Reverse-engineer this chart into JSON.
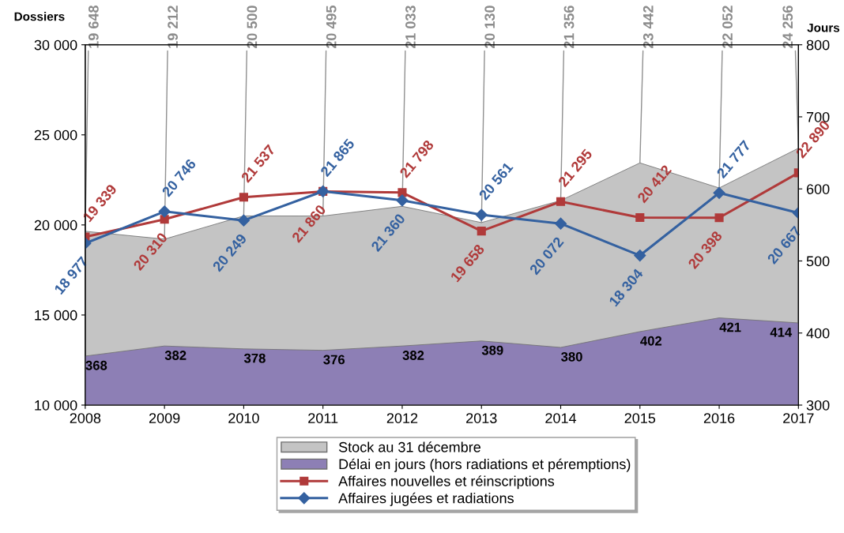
{
  "chart_data": {
    "type": "line",
    "categories": [
      "2008",
      "2009",
      "2010",
      "2011",
      "2012",
      "2013",
      "2014",
      "2015",
      "2016",
      "2017"
    ],
    "ylabel": "Dossiers",
    "y2label": "Jours",
    "ylim": [
      10000,
      30000
    ],
    "yticks": [
      {
        "value": 10000,
        "label": "10 000"
      },
      {
        "value": 15000,
        "label": "15 000"
      },
      {
        "value": 20000,
        "label": "20 000"
      },
      {
        "value": 25000,
        "label": "25 000"
      },
      {
        "value": 30000,
        "label": "30 000"
      }
    ],
    "y2lim": [
      300,
      800
    ],
    "y2ticks": [
      300,
      400,
      500,
      600,
      700,
      800
    ],
    "series": [
      {
        "name": "Stock au 31 décembre",
        "type": "area",
        "color": "#c4c4c4",
        "values": [
          19648,
          19212,
          20500,
          20495,
          21033,
          20130,
          21356,
          23442,
          22052,
          24256
        ]
      },
      {
        "name": "Délai en jours (hors radiations et péremptions)",
        "type": "area",
        "axis": "y2",
        "color": "#8d7fb5",
        "values": [
          368,
          382,
          378,
          376,
          382,
          389,
          380,
          402,
          421,
          414
        ],
        "value_labels": [
          "368",
          "382",
          "378",
          "376",
          "382",
          "389",
          "380",
          "402",
          "421",
          "414"
        ]
      },
      {
        "name": "Affaires nouvelles et réinscriptions",
        "marker": "square",
        "color": "#b03a3a",
        "values": [
          19339,
          20310,
          21537,
          21860,
          21798,
          19658,
          21295,
          20412,
          20398,
          22890
        ],
        "value_labels": [
          "19 339",
          "20 310",
          "21 537",
          "21 860",
          "21 798",
          "19 658",
          "21 295",
          "20 412",
          "20 398",
          "22 890"
        ]
      },
      {
        "name": "Affaires jugées et radiations",
        "marker": "diamond",
        "color": "#3461a0",
        "values": [
          18977,
          20746,
          20249,
          21865,
          21360,
          20561,
          20072,
          18304,
          21777,
          20667
        ],
        "value_labels": [
          "18 977",
          "20 746",
          "20 249",
          "21 865",
          "21 360",
          "20 561",
          "20 072",
          "18 304",
          "21 777",
          "20 667"
        ]
      }
    ],
    "annotations": [
      {
        "text": "19 648",
        "x": "2008",
        "y": 19648
      },
      {
        "text": "19 212",
        "x": "2009",
        "y": 19212
      },
      {
        "text": "20 500",
        "x": "2010",
        "y": 20500
      },
      {
        "text": "20 495",
        "x": "2011",
        "y": 20495
      },
      {
        "text": "21 033",
        "x": "2012",
        "y": 21033
      },
      {
        "text": "20 130",
        "x": "2013",
        "y": 20130
      },
      {
        "text": "21 356",
        "x": "2014",
        "y": 21356
      },
      {
        "text": "23 442",
        "x": "2015",
        "y": 23442
      },
      {
        "text": "22 052",
        "x": "2016",
        "y": 22052
      },
      {
        "text": "24 256",
        "x": "2017",
        "y": 24256
      }
    ],
    "grid": false,
    "legend": "bottom"
  }
}
